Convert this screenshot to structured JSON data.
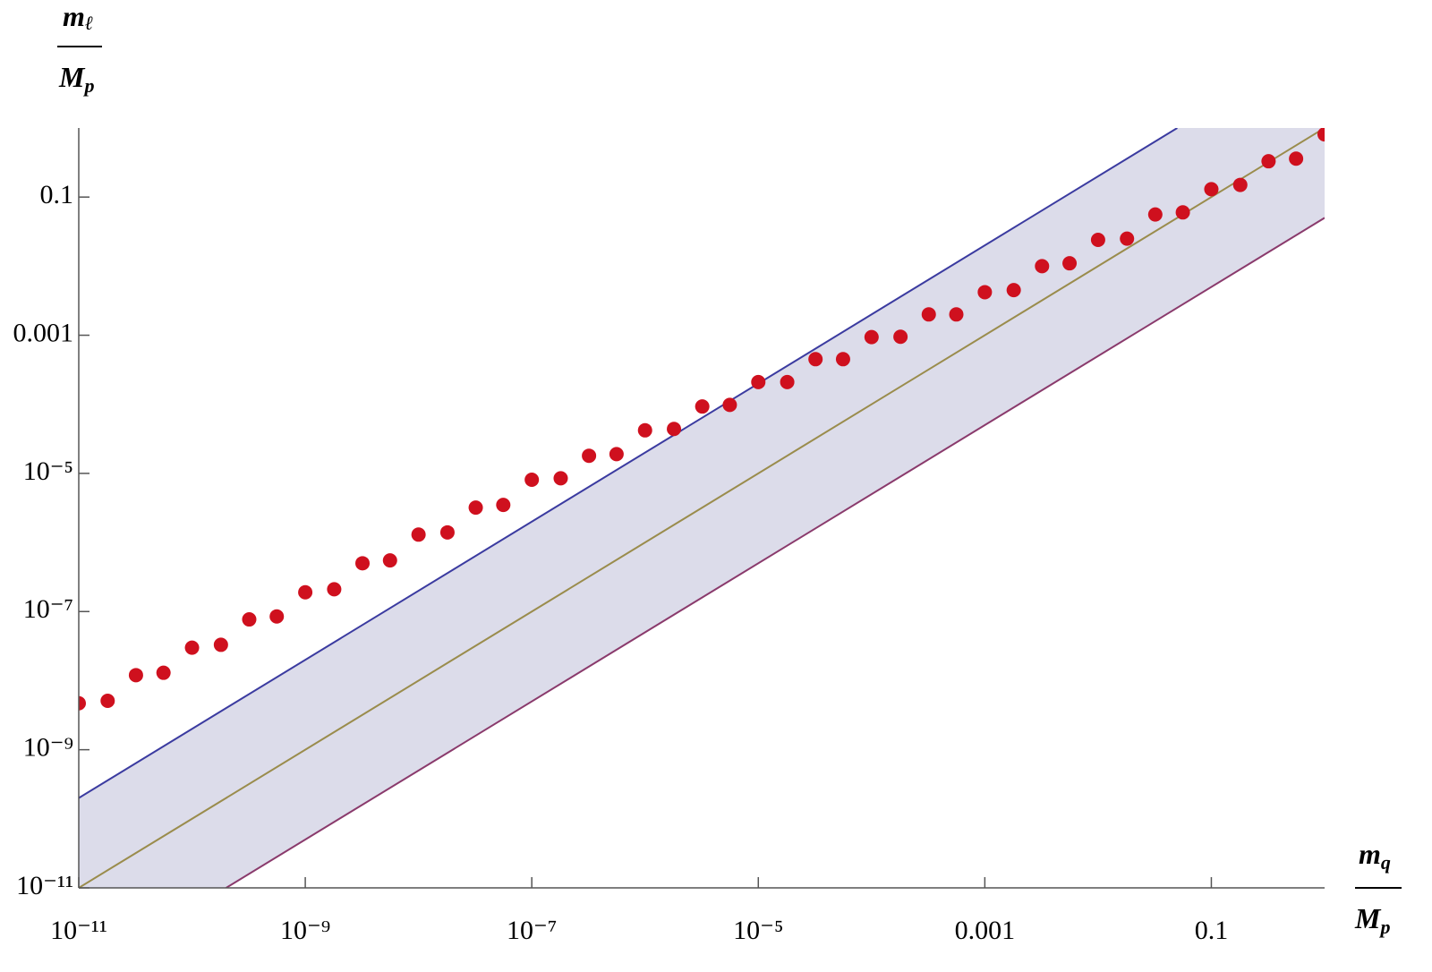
{
  "chart_data": {
    "type": "scatter",
    "log_scale": {
      "x": true,
      "y": true
    },
    "xlim": [
      1e-11,
      1
    ],
    "ylim": [
      1e-11,
      1
    ],
    "xticks": [
      {
        "value": 1e-11,
        "label": "10⁻¹¹"
      },
      {
        "value": 1e-09,
        "label": "10⁻⁹"
      },
      {
        "value": 1e-07,
        "label": "10⁻⁷"
      },
      {
        "value": 1e-05,
        "label": "10⁻⁵"
      },
      0.001,
      0.1
    ],
    "yticks": [
      {
        "value": 1e-11,
        "label": "10⁻¹¹"
      },
      {
        "value": 1e-09,
        "label": "10⁻⁹"
      },
      {
        "value": 1e-07,
        "label": "10⁻⁷"
      },
      {
        "value": 1e-05,
        "label": "10⁻⁵"
      },
      0.001,
      0.1
    ],
    "x_label": {
      "numerator": {
        "symbol": "m",
        "subscript": "q"
      },
      "denominator": {
        "symbol": "M",
        "subscript": "p"
      }
    },
    "y_label": {
      "numerator": {
        "symbol": "m",
        "subscript": "ℓ"
      },
      "denominator": {
        "symbol": "M",
        "subscript": "p"
      }
    },
    "band": {
      "color": "#dcdcea",
      "between": [
        0,
        2
      ]
    },
    "lines": [
      {
        "color": "#3b3ba0",
        "x": [
          1e-11,
          0.05
        ],
        "y": [
          2e-10,
          1
        ]
      },
      {
        "color": "#9a8c4c",
        "x": [
          1e-11,
          1
        ],
        "y": [
          1e-11,
          1
        ]
      },
      {
        "color": "#8a3a6c",
        "x": [
          2e-10,
          1
        ],
        "y": [
          1e-11,
          0.05
        ]
      }
    ],
    "series": [
      {
        "color": "#cf101e",
        "x": [
          1e-11,
          1.8e-11,
          3.2e-11,
          5.6e-11,
          1e-10,
          1.8e-10,
          3.2e-10,
          5.6e-10,
          1e-09,
          1.8e-09,
          3.2e-09,
          5.6e-09,
          1e-08,
          1.8e-08,
          3.2e-08,
          5.6e-08,
          1e-07,
          1.8e-07,
          3.2e-07,
          5.6e-07,
          1e-06,
          1.8e-06,
          3.2e-06,
          5.6e-06,
          1e-05,
          1.8e-05,
          3.2e-05,
          5.6e-05,
          0.0001,
          0.00018,
          0.00032,
          0.00056,
          0.001,
          0.0018,
          0.0032,
          0.0056,
          0.01,
          0.018,
          0.032,
          0.056,
          0.1,
          0.18,
          0.32,
          0.56,
          1
        ],
        "y": [
          4.7e-09,
          5.1e-09,
          1.2e-08,
          1.3e-08,
          3e-08,
          3.3e-08,
          7.7e-08,
          8.5e-08,
          1.9e-07,
          2.1e-07,
          5e-07,
          5.5e-07,
          1.3e-06,
          1.4e-06,
          3.2e-06,
          3.5e-06,
          8.1e-06,
          8.5e-06,
          1.8e-05,
          1.9e-05,
          4.2e-05,
          4.4e-05,
          9.3e-05,
          9.8e-05,
          0.00021,
          0.00021,
          0.00045,
          0.00045,
          0.00094,
          0.00095,
          0.002,
          0.002,
          0.0042,
          0.0045,
          0.01,
          0.011,
          0.024,
          0.025,
          0.056,
          0.06,
          0.13,
          0.15,
          0.33,
          0.36,
          0.81
        ]
      }
    ]
  }
}
